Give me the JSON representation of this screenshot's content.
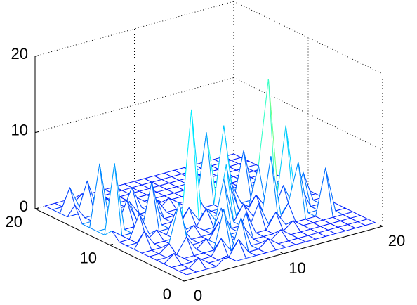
{
  "chart_data": {
    "type": "mesh",
    "colormap": "jet",
    "grid": true,
    "x": [
      1,
      2,
      3,
      4,
      5,
      6,
      7,
      8,
      9,
      10,
      11,
      12,
      13,
      14,
      15,
      16,
      17,
      18,
      19,
      20
    ],
    "y": [
      1,
      2,
      3,
      4,
      5,
      6,
      7,
      8,
      9,
      10,
      11,
      12,
      13,
      14,
      15,
      16,
      17,
      18,
      19,
      20
    ],
    "z": [
      [
        0,
        0,
        0,
        0,
        1,
        0,
        0,
        0,
        0,
        0,
        0,
        0,
        0,
        0,
        0,
        0,
        0,
        0,
        0,
        0
      ],
      [
        0,
        0,
        1,
        0,
        0,
        0,
        2,
        0,
        0,
        1,
        0,
        0,
        0,
        0,
        0,
        0,
        0,
        0,
        0,
        0
      ],
      [
        0,
        0,
        0,
        0,
        0,
        2,
        0,
        4,
        0,
        0,
        0,
        1,
        0,
        0,
        0,
        0,
        0,
        0,
        0,
        0
      ],
      [
        0,
        1,
        0,
        0,
        0,
        0,
        5,
        0,
        2,
        0,
        0,
        0,
        0,
        1,
        0,
        0,
        0,
        0,
        0,
        0
      ],
      [
        0,
        0,
        0,
        2,
        0,
        1,
        0,
        0,
        0,
        3,
        0,
        0,
        2,
        0,
        0,
        0,
        0,
        6,
        0,
        0
      ],
      [
        0,
        0,
        1,
        6,
        0,
        0,
        0,
        2,
        0,
        0,
        0,
        3,
        0,
        0,
        2,
        7,
        0,
        0,
        1,
        0
      ],
      [
        0,
        0,
        0,
        0,
        2,
        0,
        0,
        0,
        3,
        0,
        0,
        0,
        0,
        8,
        0,
        0,
        3,
        0,
        0,
        0
      ],
      [
        0,
        2,
        0,
        0,
        0,
        0,
        1,
        0,
        0,
        6,
        0,
        2,
        0,
        0,
        0,
        3,
        0,
        4,
        0,
        0
      ],
      [
        0,
        0,
        0,
        1,
        0,
        3,
        0,
        0,
        2,
        0,
        7,
        0,
        0,
        2,
        0,
        0,
        10,
        0,
        0,
        0
      ],
      [
        0,
        0,
        3,
        0,
        0,
        0,
        0,
        2,
        0,
        0,
        0,
        4,
        0,
        0,
        5,
        16,
        0,
        0,
        2,
        0
      ],
      [
        1,
        0,
        0,
        0,
        6,
        0,
        0,
        0,
        14,
        0,
        0,
        0,
        3,
        0,
        0,
        0,
        4,
        0,
        0,
        0
      ],
      [
        0,
        9,
        0,
        0,
        0,
        2,
        0,
        0,
        0,
        3,
        0,
        0,
        10,
        0,
        6,
        0,
        0,
        0,
        0,
        0
      ],
      [
        0,
        0,
        0,
        3,
        0,
        0,
        2,
        0,
        0,
        0,
        0,
        9,
        0,
        0,
        0,
        0,
        0,
        0,
        0,
        0
      ],
      [
        0,
        8,
        0,
        0,
        2,
        0,
        0,
        0,
        1,
        0,
        0,
        0,
        0,
        0,
        0,
        0,
        0,
        0,
        0,
        0
      ],
      [
        0,
        0,
        3,
        0,
        0,
        3,
        0,
        0,
        0,
        0,
        0,
        0,
        0,
        0,
        0,
        0,
        0,
        0,
        0,
        0
      ],
      [
        2,
        0,
        0,
        0,
        0,
        0,
        1,
        0,
        0,
        0,
        0,
        0,
        0,
        0,
        0,
        0,
        0,
        0,
        0,
        0
      ],
      [
        0,
        0,
        4,
        0,
        1,
        0,
        0,
        0,
        0,
        0,
        0,
        0,
        0,
        0,
        0,
        0,
        0,
        0,
        0,
        0
      ],
      [
        0,
        3,
        0,
        0,
        0,
        0,
        0,
        0,
        0,
        0,
        0,
        0,
        0,
        0,
        0,
        0,
        0,
        0,
        0,
        0
      ],
      [
        0,
        0,
        0,
        1,
        0,
        0,
        0,
        0,
        0,
        0,
        0,
        0,
        0,
        0,
        0,
        0,
        0,
        0,
        0,
        0
      ],
      [
        0,
        0,
        0,
        0,
        0,
        0,
        0,
        0,
        0,
        0,
        0,
        0,
        0,
        0,
        0,
        0,
        0,
        0,
        0,
        0
      ]
    ],
    "xlim": [
      0,
      20
    ],
    "ylim": [
      0,
      20
    ],
    "zlim": [
      0,
      20
    ],
    "xticks": [
      0,
      10,
      20
    ],
    "yticks": [
      0,
      10,
      20
    ],
    "zticks": [
      0,
      10,
      20
    ]
  }
}
